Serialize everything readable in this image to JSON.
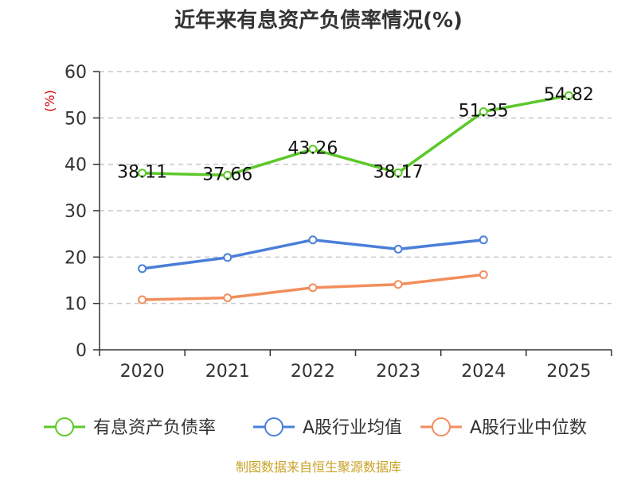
{
  "chart_data": {
    "type": "line",
    "title": "近年来有息资产负债率情况(%)",
    "ylabel": "(%)",
    "xlabel": "",
    "categories": [
      "2020",
      "2021",
      "2022",
      "2023",
      "2024",
      "2025"
    ],
    "ylim": [
      0,
      60
    ],
    "yticks": [
      0,
      10,
      20,
      30,
      40,
      50,
      60
    ],
    "grid": true,
    "legend_position": "bottom",
    "series": [
      {
        "name": "有息资产负债率",
        "color": "#5cc82a",
        "values": [
          38.11,
          37.66,
          43.26,
          38.17,
          51.35,
          54.82
        ],
        "labels": [
          "38.11",
          "37.66",
          "43.26",
          "38.17",
          "51.35",
          "54.82"
        ]
      },
      {
        "name": "A股行业均值",
        "color": "#4a7fd8",
        "values": [
          17.5,
          19.9,
          23.7,
          21.7,
          23.7,
          null
        ]
      },
      {
        "name": "A股行业中位数",
        "color": "#f28e5c",
        "values": [
          10.8,
          11.2,
          13.4,
          14.1,
          16.2,
          null
        ]
      }
    ],
    "source": "制图数据来自恒生聚源数据库"
  }
}
